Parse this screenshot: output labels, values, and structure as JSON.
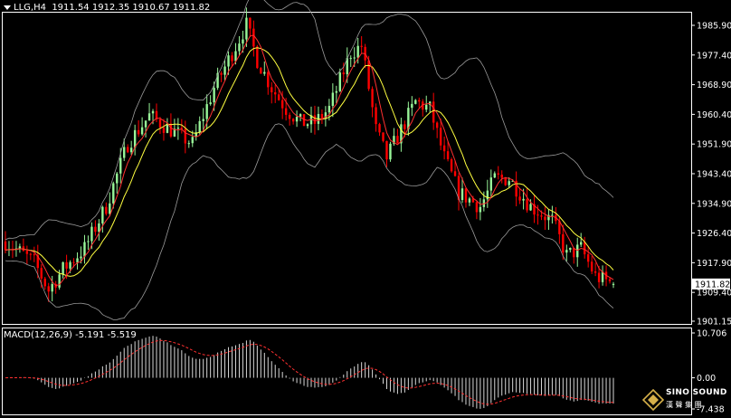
{
  "header": {
    "symbol": "LLG,H4",
    "ohlc": "1911.54 1912.35 1910.67 1911.82"
  },
  "macd_label": "MACD(12,26,9) -5.191 -5.519",
  "logo": {
    "name": "SINO SOUND",
    "sub": "漢 聲 集 團"
  },
  "colors": {
    "background": "#000000",
    "bull": "#98f598",
    "bear": "#ff0000",
    "ma_fast": "#ff3030",
    "ma_slow": "#ffff40",
    "band": "#9a9a9a",
    "axis": "#ffffff"
  },
  "chart_data": [
    {
      "type": "candlestick",
      "price_axis_ticks": [
        "1985.90",
        "1977.40",
        "1968.90",
        "1960.40",
        "1951.90",
        "1943.40",
        "1934.90",
        "1926.40",
        "1917.90",
        "1909.40",
        "1901.15"
      ],
      "last_price": "1911.82",
      "ylim": [
        1901.15,
        1990.0
      ],
      "bands": "bollinger",
      "moving_averages": 2
    },
    {
      "type": "bar",
      "name": "MACD(12,26,9)",
      "ticks": [
        "10.706",
        "0.00",
        "-7.438"
      ],
      "macd": -5.191,
      "signal": -5.519,
      "ylim": [
        -7.438,
        10.706
      ]
    }
  ]
}
